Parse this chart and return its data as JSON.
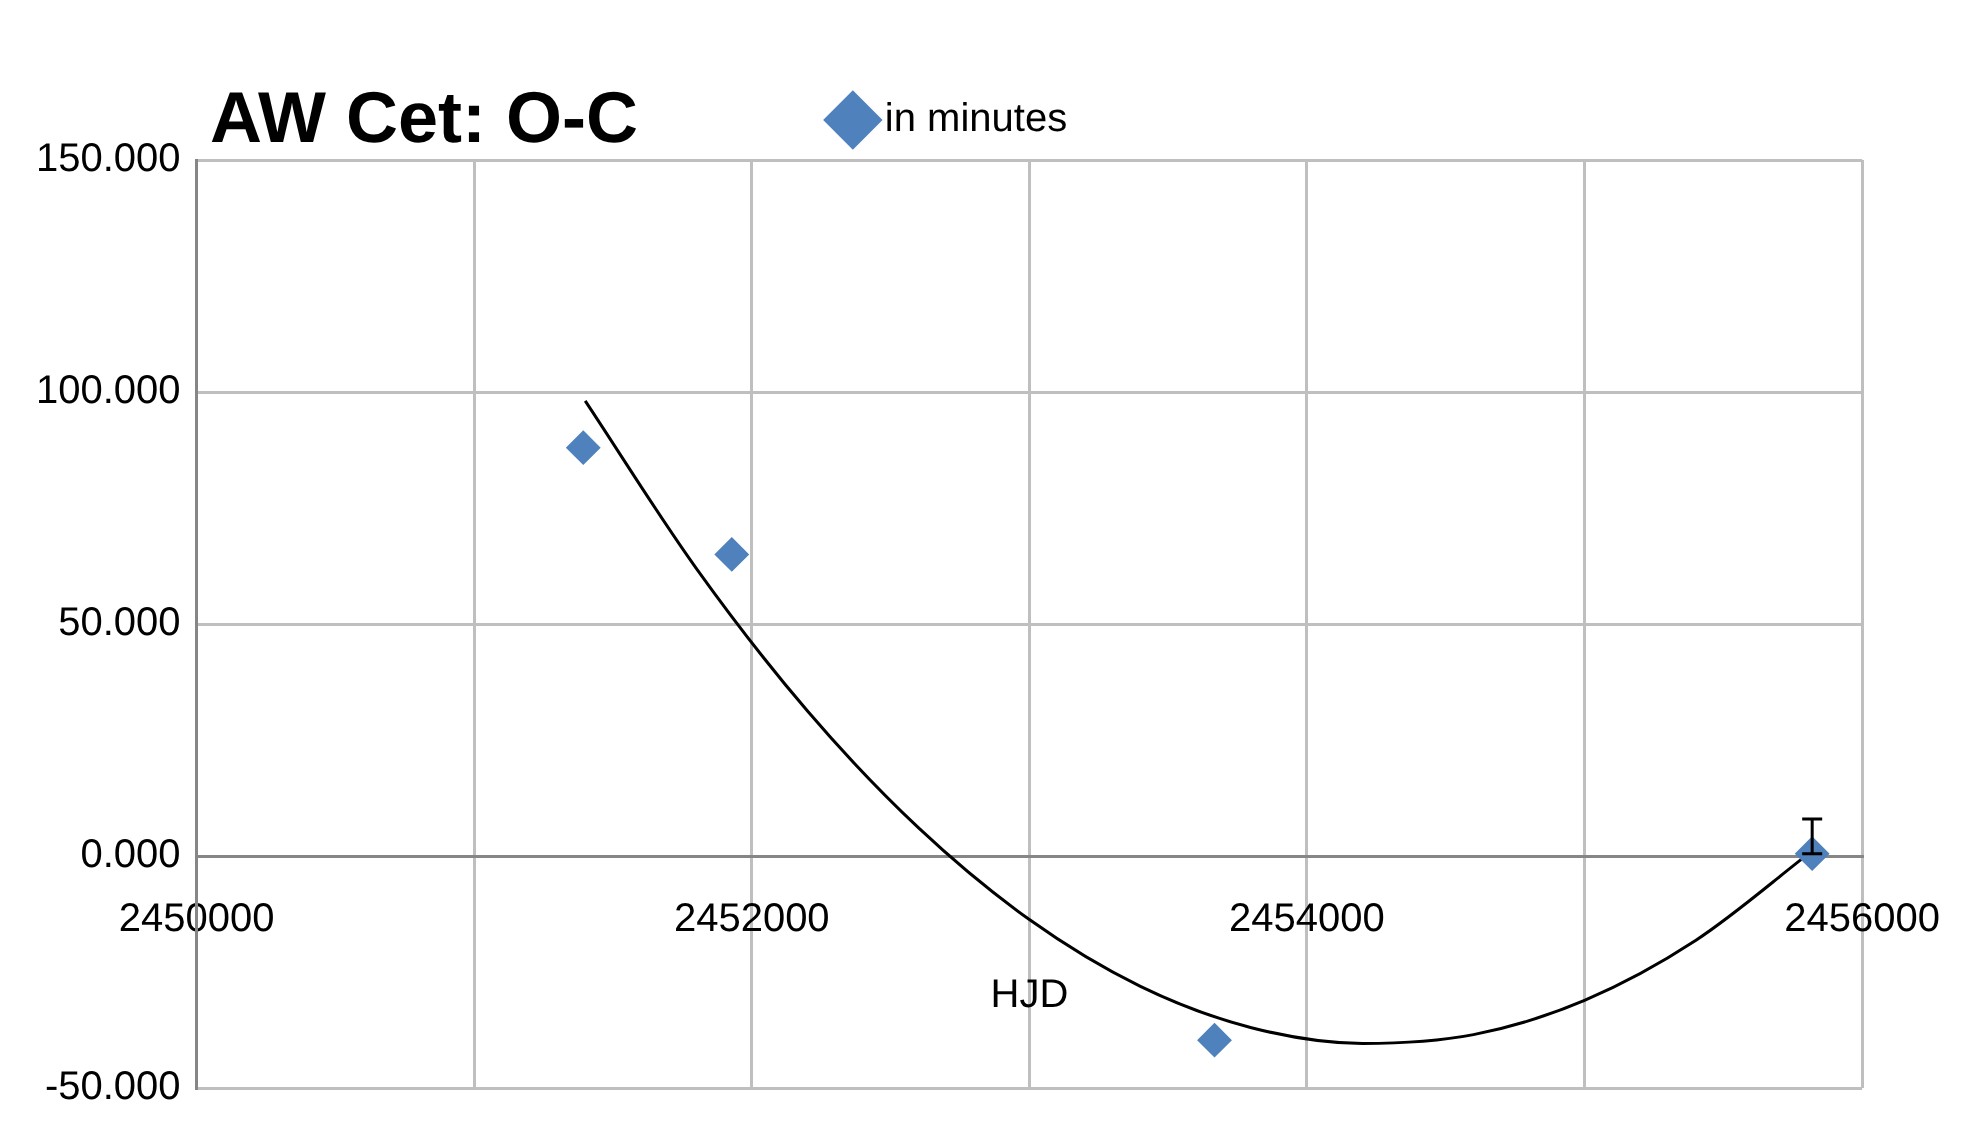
{
  "chart_data": {
    "type": "scatter",
    "title": "AW Cet: O-C",
    "xlabel": "HJD",
    "xlim": [
      2450000,
      2456000
    ],
    "xticks": [
      2450000,
      {
        "value": 2451000,
        "label": null
      },
      2452000,
      {
        "value": 2453000,
        "label": null
      },
      2454000,
      {
        "value": 2455000,
        "label": null
      },
      2456000
    ],
    "ylim": [
      -50,
      150
    ],
    "yticks": [
      {
        "value": -50,
        "label": "-50.000"
      },
      {
        "value": 0,
        "label": "0.000"
      },
      {
        "value": 50,
        "label": "50.000"
      },
      {
        "value": 100,
        "label": "100.000"
      },
      {
        "value": 150,
        "label": "150.000"
      }
    ],
    "grid": true,
    "legend": "top",
    "marker": "diamond",
    "series": [
      {
        "name": "in minutes",
        "color": "#4f81bd",
        "x": [
          2451393,
          2451928,
          2453667,
          2455820
        ],
        "values": [
          88,
          65,
          -39.7,
          0.5
        ],
        "errors": [
          null,
          null,
          null,
          [
            0.5,
            8
          ]
        ]
      },
      {
        "type": "line",
        "color": "#000000",
        "marker": "none",
        "x": [
          2451400,
          2451800,
          2452200,
          2452600,
          2453000,
          2453400,
          2453800,
          2454200,
          2454600,
          2455000,
          2455400,
          2455820
        ],
        "values": [
          98.1,
          62.0,
          31.3,
          6.1,
          -13.7,
          -28.1,
          -37.0,
          -40.4,
          -38.5,
          -31.1,
          -18.2,
          1.1
        ]
      }
    ]
  }
}
